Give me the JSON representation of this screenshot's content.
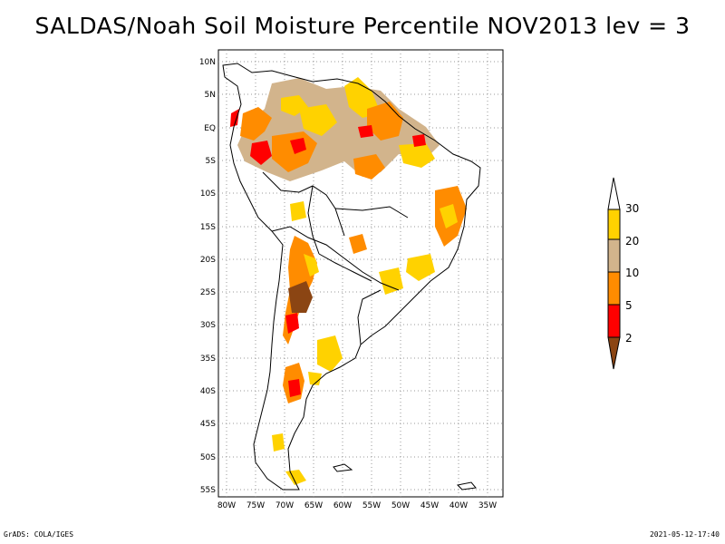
{
  "title": "SALDAS/Noah Soil Moisture Percentile NOV2013 lev = 3",
  "map": {
    "lat_ticks": [
      "10N",
      "5N",
      "EQ",
      "5S",
      "10S",
      "15S",
      "20S",
      "25S",
      "30S",
      "35S",
      "40S",
      "45S",
      "50S",
      "55S"
    ],
    "lon_ticks": [
      "80W",
      "75W",
      "70W",
      "65W",
      "60W",
      "55W",
      "50W",
      "45W",
      "40W",
      "35W"
    ],
    "grid": "dotted",
    "region": "South America",
    "lon_range": [
      -80.5,
      -31.5
    ],
    "lat_range": [
      -55.5,
      12.5
    ]
  },
  "legend": {
    "labels": [
      "30",
      "20",
      "10",
      "5",
      "2"
    ],
    "colors": [
      "#ffd200",
      "#d2b48c",
      "#ff8c00",
      "#ff0000",
      "#8b4513"
    ],
    "top_triangle_color": "#ffffff"
  },
  "footer": {
    "left": "GrADS: COLA/IGES",
    "right": "2021-05-12-17:40"
  }
}
